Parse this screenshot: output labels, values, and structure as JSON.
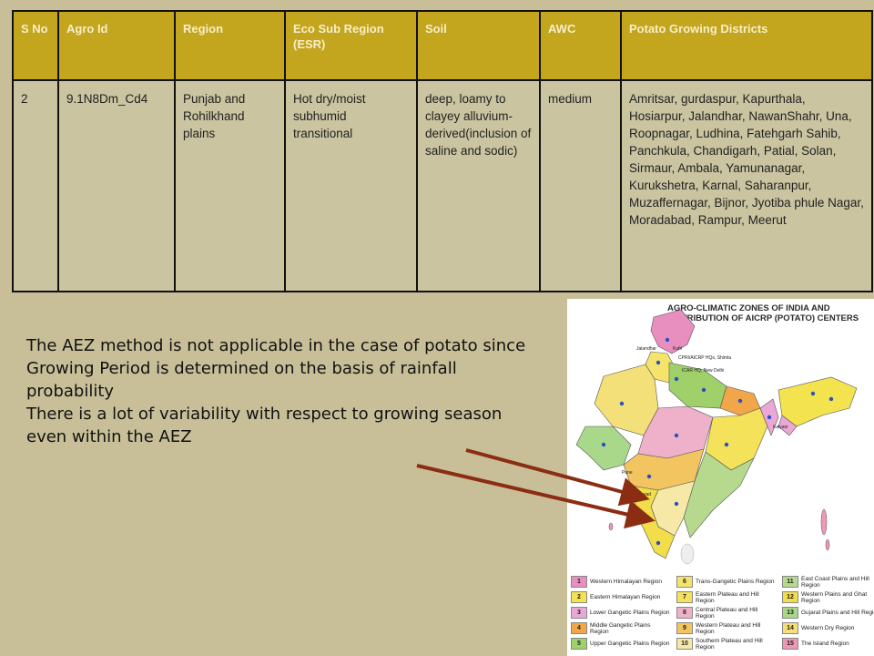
{
  "table": {
    "headers": [
      "S No",
      "Agro Id",
      "Region",
      "Eco Sub Region (ESR)",
      "Soil",
      "AWC",
      "Potato Growing Districts"
    ],
    "row": {
      "sno": "2",
      "agro_id": "9.1N8Dm_Cd4",
      "region": "Punjab and Rohilkhand plains",
      "esr": "Hot dry/moist subhumid transitional",
      "soil": "deep, loamy to clayey alluvium-derived(inclusion of saline and sodic)",
      "awc": "medium",
      "districts": "Amritsar,  gurdaspur, Kapurthala, Hosiarpur, Jalandhar, NawanShahr, Una, Roopnagar, Ludhina, Fatehgarh Sahib, Panchkula, Chandigarh, Patial, Solan, Sirmaur, Ambala, Yamunanagar, Kurukshetra, Karnal, Saharanpur, Muzaffernagar, Bijnor, Jyotiba phule Nagar, Moradabad, Rampur, Meerut"
    }
  },
  "notes": {
    "line1": "The AEZ method is not applicable in the case of potato since Growing Period is determined on the basis of rainfall probability",
    "line2": "There is a lot of variability with respect to growing season even within the AEZ"
  },
  "map": {
    "title": "AGRO-CLIMATIC ZONES OF INDIA AND DISTRIBUTION OF AICRP (POTATO) CENTERS",
    "labels": {
      "shimla": "CPRI/AICRP HQs, Shimla",
      "delhi": "ICAR HQ, New Delhi",
      "jalandhar": "Jalandhar",
      "kufri": "Kufri",
      "dharwad": "Dharwad",
      "kalyani": "Kalyani",
      "pune": "Pune"
    },
    "legend": [
      {
        "num": "1",
        "label": "Western Himalayan Region",
        "color": "#e98fc0"
      },
      {
        "num": "2",
        "label": "Eastern Himalayan Region",
        "color": "#f3e34f"
      },
      {
        "num": "3",
        "label": "Lower Gangetic Plains Region",
        "color": "#e9a8d6"
      },
      {
        "num": "4",
        "label": "Middle Gangetic Plains Region",
        "color": "#f2a64a"
      },
      {
        "num": "5",
        "label": "Upper Gangetic Plains Region",
        "color": "#9fd06a"
      },
      {
        "num": "6",
        "label": "Trans-Gangetic Plains Region",
        "color": "#f5e46b"
      },
      {
        "num": "7",
        "label": "Eastern Plateau and Hill Region",
        "color": "#f4e25a"
      },
      {
        "num": "8",
        "label": "Central Plateau and Hill Region",
        "color": "#efb0c9"
      },
      {
        "num": "9",
        "label": "Western Plateau and Hill Region",
        "color": "#f3c561"
      },
      {
        "num": "10",
        "label": "Southern Plateau and Hill Region",
        "color": "#f6e9a8"
      },
      {
        "num": "11",
        "label": "East Coast Plains and Hill Region",
        "color": "#b7d98d"
      },
      {
        "num": "12",
        "label": "Western Plains and Ghat Region",
        "color": "#f2dd4a"
      },
      {
        "num": "13",
        "label": "Gujarat Plains and Hill Region",
        "color": "#a9d88a"
      },
      {
        "num": "14",
        "label": "Western Dry Region",
        "color": "#f3e078"
      },
      {
        "num": "15",
        "label": "The Island Region",
        "color": "#ec98b6"
      }
    ]
  },
  "colors": {
    "background": "#c8bf98",
    "header": "#c3a51e",
    "arrow": "#8b2d12"
  }
}
